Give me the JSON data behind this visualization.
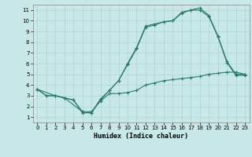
{
  "title": "",
  "xlabel": "Humidex (Indice chaleur)",
  "bg_color": "#c8e8e8",
  "grid_color": "#b0d8d8",
  "line_color": "#2a7a6a",
  "xlim": [
    -0.5,
    23.5
  ],
  "ylim": [
    0.5,
    11.5
  ],
  "xticks": [
    0,
    1,
    2,
    3,
    4,
    5,
    6,
    7,
    8,
    9,
    10,
    11,
    12,
    13,
    14,
    15,
    16,
    17,
    18,
    19,
    20,
    21,
    22,
    23
  ],
  "yticks": [
    1,
    2,
    3,
    4,
    5,
    6,
    7,
    8,
    9,
    10,
    11
  ],
  "line1_x": [
    0,
    1,
    2,
    3,
    4,
    5,
    6,
    7,
    8,
    9,
    10,
    11,
    12,
    13,
    14,
    15,
    16,
    17,
    18,
    19,
    20,
    21,
    22,
    23
  ],
  "line1_y": [
    3.6,
    3.0,
    3.0,
    2.8,
    2.6,
    1.4,
    1.4,
    2.6,
    3.5,
    4.4,
    6.0,
    7.5,
    9.5,
    9.7,
    9.9,
    10.0,
    10.8,
    11.0,
    11.2,
    10.5,
    8.6,
    6.2,
    5.0,
    5.0
  ],
  "line2_x": [
    0,
    2,
    3,
    5,
    6,
    7,
    8,
    9,
    10,
    11,
    12,
    13,
    14,
    15,
    16,
    17,
    18,
    19,
    20,
    21,
    22,
    23
  ],
  "line2_y": [
    3.6,
    3.0,
    2.8,
    1.5,
    1.4,
    2.7,
    3.5,
    4.4,
    5.9,
    7.4,
    9.4,
    9.6,
    9.9,
    10.0,
    10.7,
    11.0,
    11.0,
    10.4,
    8.5,
    6.1,
    4.9,
    4.9
  ],
  "line3_x": [
    0,
    1,
    2,
    3,
    4,
    5,
    6,
    7,
    8,
    9,
    10,
    11,
    12,
    13,
    14,
    15,
    16,
    17,
    18,
    19,
    20,
    21,
    22,
    23
  ],
  "line3_y": [
    3.6,
    3.0,
    3.0,
    2.8,
    2.6,
    1.5,
    1.5,
    2.5,
    3.2,
    3.2,
    3.3,
    3.5,
    4.0,
    4.2,
    4.4,
    4.5,
    4.6,
    4.7,
    4.8,
    5.0,
    5.1,
    5.2,
    5.2,
    5.0
  ]
}
